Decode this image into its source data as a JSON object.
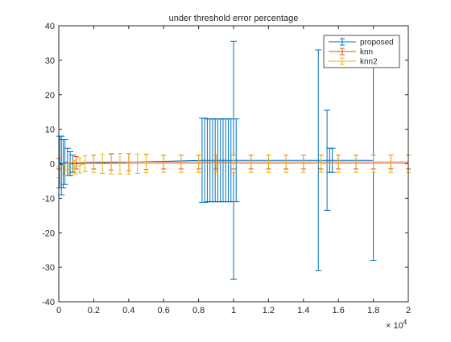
{
  "chart_data": {
    "type": "errorbar",
    "title": "under threshold error percentage",
    "xlabel": "",
    "ylabel": "",
    "xlim": [
      0,
      20000
    ],
    "ylim": [
      -40,
      40
    ],
    "x_exponent_label": "× 10",
    "x_exponent_power": "4",
    "x_ticks": [
      0,
      2000,
      4000,
      6000,
      8000,
      10000,
      12000,
      14000,
      16000,
      18000,
      20000
    ],
    "x_tick_labels": [
      "0",
      "0.2",
      "0.4",
      "0.6",
      "0.8",
      "1",
      "1.2",
      "1.4",
      "1.6",
      "1.8",
      "2"
    ],
    "y_ticks": [
      -40,
      -30,
      -20,
      -10,
      0,
      10,
      20,
      30,
      40
    ],
    "y_tick_labels": [
      "-40",
      "-30",
      "-20",
      "-10",
      "0",
      "10",
      "20",
      "30",
      "40"
    ],
    "grid": false,
    "legend_position": "top-right",
    "series": [
      {
        "name": "proposed",
        "color": "#0072bd",
        "points": [
          {
            "x": 50,
            "y": 0.5,
            "err": 7.5
          },
          {
            "x": 150,
            "y": -0.5,
            "err": 8.5
          },
          {
            "x": 250,
            "y": 0,
            "err": 7
          },
          {
            "x": 350,
            "y": 0.5,
            "err": 6.5
          },
          {
            "x": 500,
            "y": 0.5,
            "err": 4
          },
          {
            "x": 650,
            "y": 0,
            "err": 3.5
          },
          {
            "x": 800,
            "y": 0,
            "err": 2.5
          },
          {
            "x": 8200,
            "y": 1,
            "err": 12.2
          },
          {
            "x": 8350,
            "y": 1,
            "err": 12.2
          },
          {
            "x": 8500,
            "y": 1,
            "err": 12
          },
          {
            "x": 8650,
            "y": 1,
            "err": 12
          },
          {
            "x": 8800,
            "y": 1,
            "err": 12
          },
          {
            "x": 8950,
            "y": 1,
            "err": 12
          },
          {
            "x": 9100,
            "y": 1,
            "err": 12
          },
          {
            "x": 9250,
            "y": 1,
            "err": 12
          },
          {
            "x": 9400,
            "y": 1,
            "err": 12
          },
          {
            "x": 9550,
            "y": 1,
            "err": 12
          },
          {
            "x": 9700,
            "y": 1,
            "err": 12
          },
          {
            "x": 9850,
            "y": 1,
            "err": 12
          },
          {
            "x": 10000,
            "y": 1,
            "err": 34.5
          },
          {
            "x": 10150,
            "y": 1,
            "err": 12
          },
          {
            "x": 14850,
            "y": 1,
            "err": 32
          },
          {
            "x": 15350,
            "y": 1,
            "err": 14.5
          },
          {
            "x": 15500,
            "y": 1,
            "err": 3.5
          },
          {
            "x": 15650,
            "y": 1,
            "err": 3.5
          },
          {
            "x": 18000,
            "y": 1,
            "err": 29
          }
        ]
      },
      {
        "name": "knn",
        "color": "#d95319",
        "points": [
          {
            "x": 0,
            "y": 0,
            "err": 1.5
          },
          {
            "x": 1000,
            "y": 0.3,
            "err": 1.8
          },
          {
            "x": 2000,
            "y": 0.5,
            "err": 2.0
          },
          {
            "x": 3000,
            "y": 0.5,
            "err": 2.3
          },
          {
            "x": 4000,
            "y": 0.5,
            "err": 2.5
          },
          {
            "x": 5000,
            "y": 0.5,
            "err": 2.2
          },
          {
            "x": 6000,
            "y": 0.5,
            "err": 2.0
          },
          {
            "x": 7000,
            "y": 0.5,
            "err": 2.0
          },
          {
            "x": 8000,
            "y": 0.5,
            "err": 2.0
          },
          {
            "x": 9000,
            "y": 0.5,
            "err": 2.0
          },
          {
            "x": 10000,
            "y": 0.5,
            "err": 2.0
          },
          {
            "x": 11000,
            "y": 0.5,
            "err": 2.0
          },
          {
            "x": 12000,
            "y": 0.5,
            "err": 2.0
          },
          {
            "x": 13000,
            "y": 0.5,
            "err": 2.0
          },
          {
            "x": 14000,
            "y": 0.5,
            "err": 2.0
          },
          {
            "x": 15000,
            "y": 0.5,
            "err": 2.0
          },
          {
            "x": 16000,
            "y": 0.5,
            "err": 2.0
          },
          {
            "x": 17000,
            "y": 0.5,
            "err": 2.0
          },
          {
            "x": 18000,
            "y": 0.5,
            "err": 2.0
          },
          {
            "x": 19000,
            "y": 0.5,
            "err": 2.0
          },
          {
            "x": 20000,
            "y": 0.5,
            "err": 2.0
          }
        ]
      },
      {
        "name": "knn2",
        "color": "#edb120",
        "points": [
          {
            "x": 0,
            "y": -2.5,
            "err": 1.5
          },
          {
            "x": 300,
            "y": -2.0,
            "err": 1.5
          },
          {
            "x": 600,
            "y": -1.5,
            "err": 1.8
          },
          {
            "x": 900,
            "y": -1.0,
            "err": 2.0
          },
          {
            "x": 1200,
            "y": -0.5,
            "err": 2.2
          },
          {
            "x": 1500,
            "y": 0,
            "err": 2.3
          },
          {
            "x": 2000,
            "y": 0,
            "err": 2.5
          },
          {
            "x": 2500,
            "y": 0,
            "err": 2.8
          },
          {
            "x": 3000,
            "y": 0,
            "err": 3.0
          },
          {
            "x": 3500,
            "y": 0,
            "err": 3.0
          },
          {
            "x": 4000,
            "y": 0,
            "err": 3.0
          },
          {
            "x": 4500,
            "y": 0,
            "err": 2.8
          },
          {
            "x": 5000,
            "y": 0,
            "err": 2.6
          },
          {
            "x": 6000,
            "y": 0,
            "err": 2.5
          },
          {
            "x": 7000,
            "y": 0,
            "err": 2.5
          },
          {
            "x": 8000,
            "y": 0,
            "err": 2.5
          },
          {
            "x": 9000,
            "y": 0,
            "err": 2.5
          },
          {
            "x": 10000,
            "y": 0,
            "err": 2.5
          },
          {
            "x": 11000,
            "y": 0,
            "err": 2.5
          },
          {
            "x": 12000,
            "y": 0,
            "err": 2.5
          },
          {
            "x": 13000,
            "y": 0,
            "err": 2.5
          },
          {
            "x": 14000,
            "y": 0,
            "err": 2.5
          },
          {
            "x": 15000,
            "y": 0,
            "err": 2.5
          },
          {
            "x": 16000,
            "y": 0,
            "err": 2.5
          },
          {
            "x": 17000,
            "y": 0,
            "err": 2.5
          },
          {
            "x": 18000,
            "y": 0,
            "err": 2.5
          },
          {
            "x": 19000,
            "y": 0,
            "err": 2.5
          },
          {
            "x": 20000,
            "y": 0,
            "err": 2.5
          }
        ]
      }
    ]
  }
}
